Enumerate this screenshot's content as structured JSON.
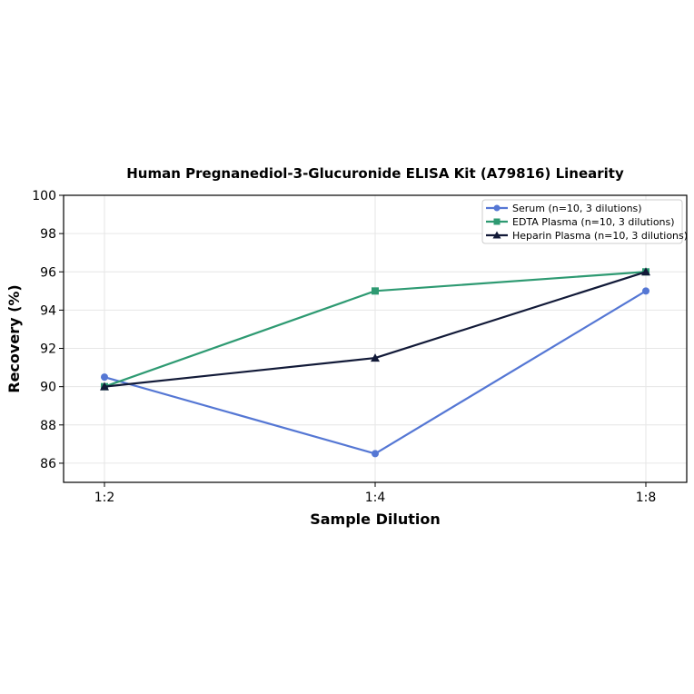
{
  "chart_data": {
    "type": "line",
    "title": "Human Pregnanediol-3-Glucuronide ELISA Kit (A79816) Linearity",
    "xlabel": "Sample Dilution",
    "ylabel": "Recovery (%)",
    "categories": [
      "1:2",
      "1:4",
      "1:8"
    ],
    "ylim": [
      85,
      100
    ],
    "yticks": [
      86,
      88,
      90,
      92,
      94,
      96,
      98,
      100
    ],
    "grid": true,
    "legend_position": "top-right",
    "series": [
      {
        "name": "Serum (n=10, 3 dilutions)",
        "values": [
          90.5,
          86.5,
          95.0
        ],
        "color": "#5577d4",
        "marker": "circle"
      },
      {
        "name": "EDTA Plasma (n=10, 3 dilutions)",
        "values": [
          90.0,
          95.0,
          96.0
        ],
        "color": "#2e9a72",
        "marker": "square"
      },
      {
        "name": "Heparin Plasma (n=10, 3 dilutions)",
        "values": [
          90.0,
          91.5,
          96.0
        ],
        "color": "#121a38",
        "marker": "triangle"
      }
    ]
  }
}
